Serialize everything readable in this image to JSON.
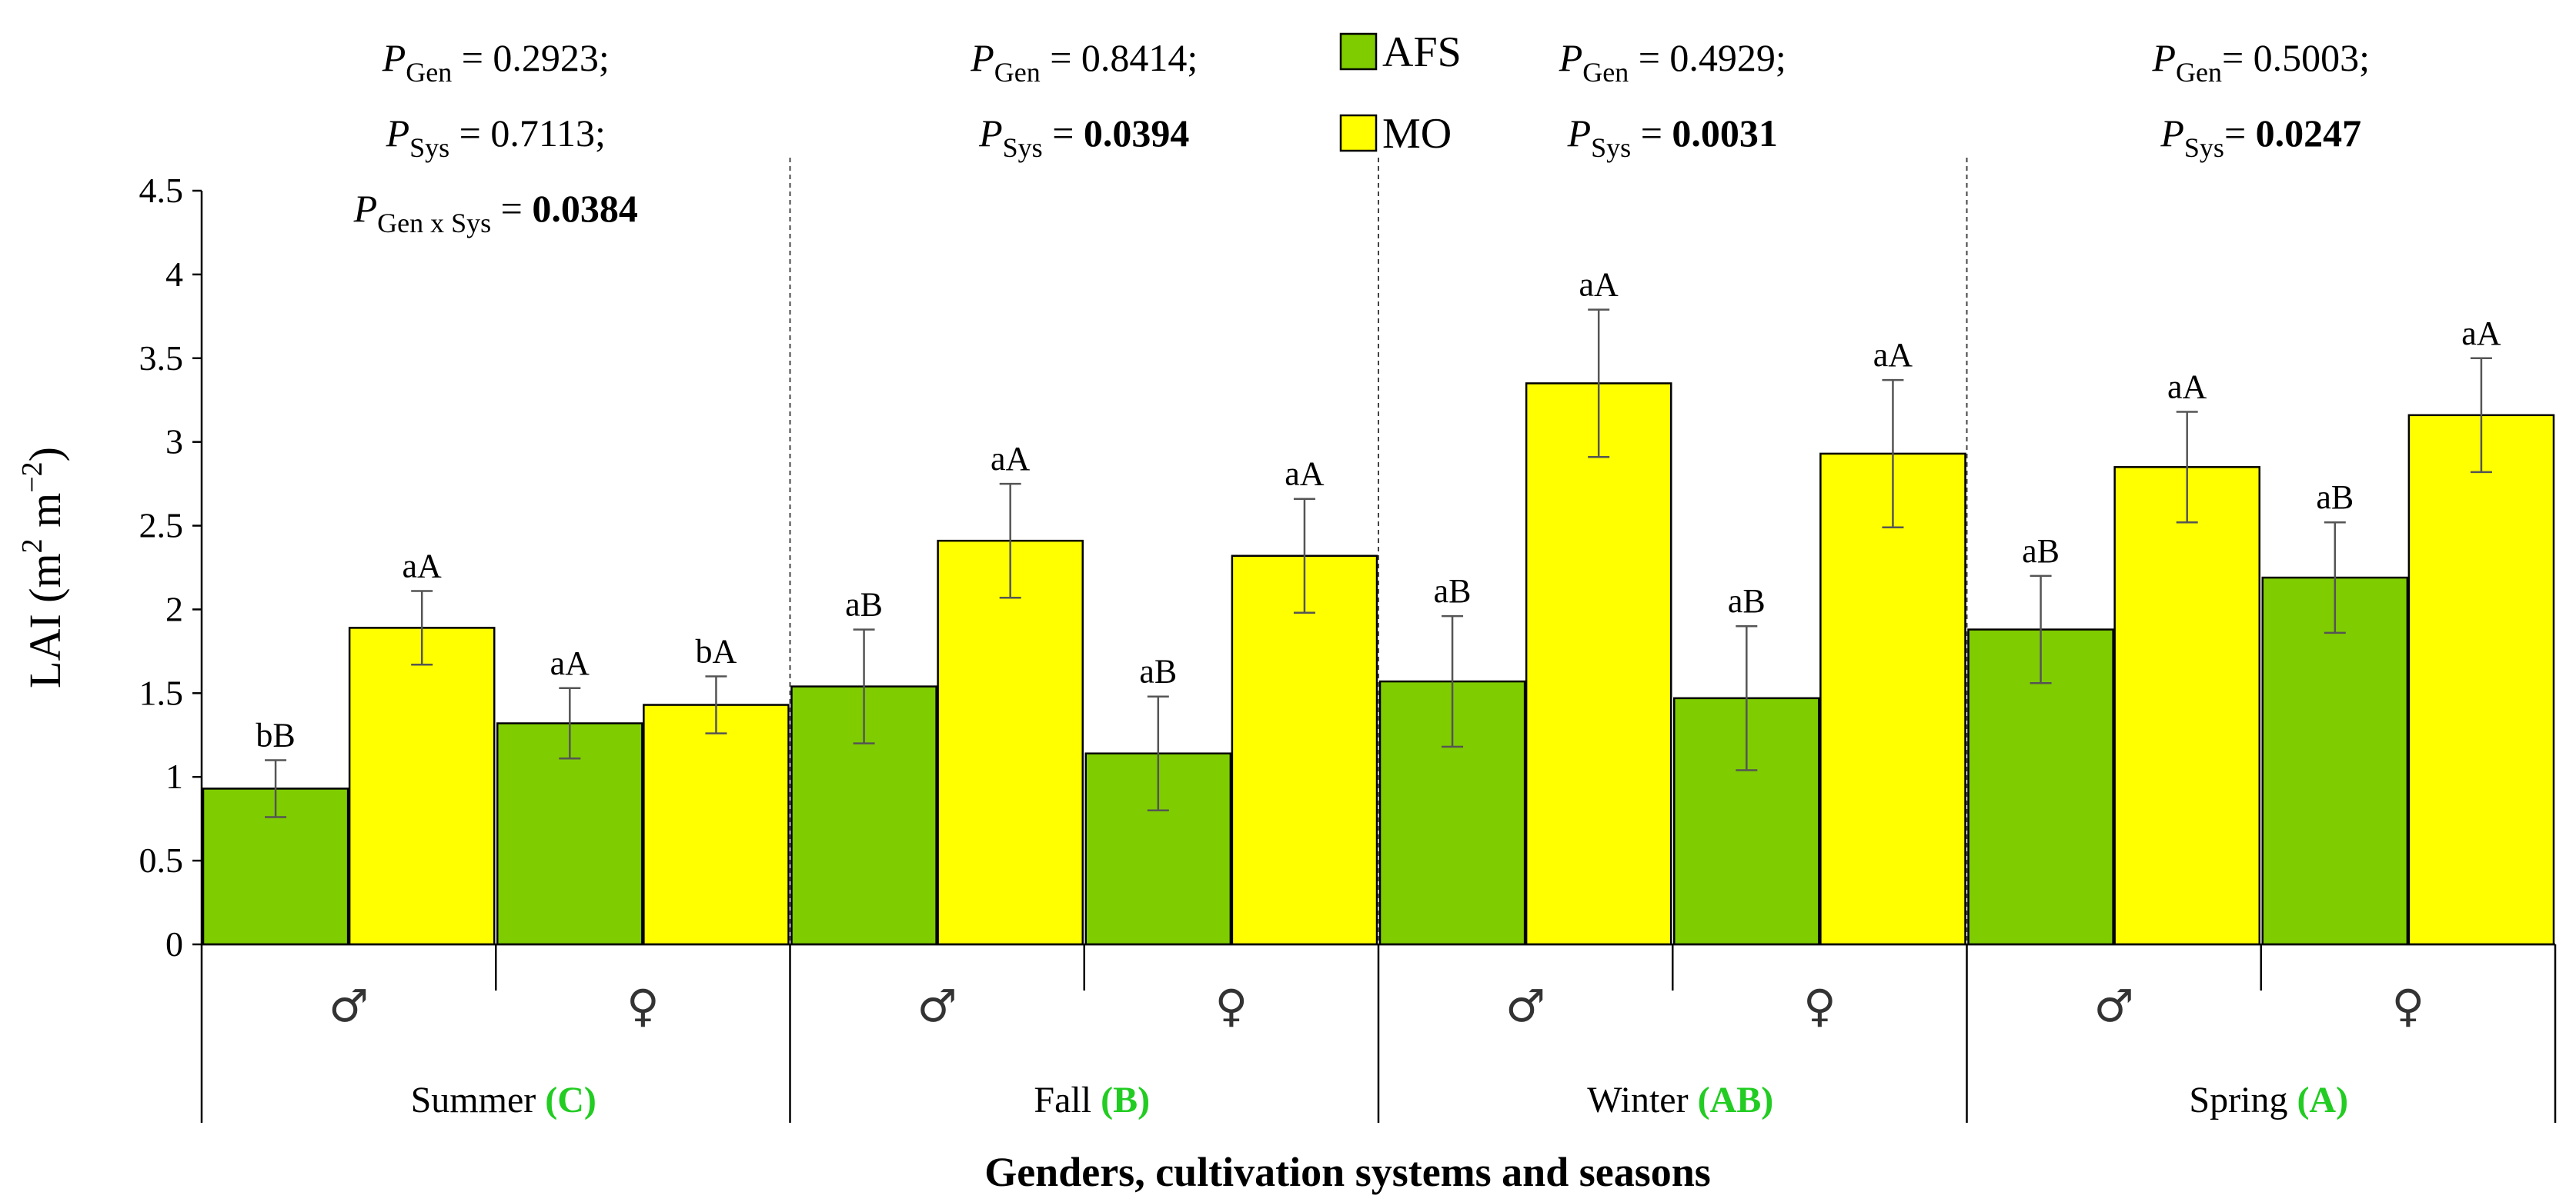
{
  "chart_data": {
    "type": "bar",
    "ylabel": "LAI (m² m⁻²)",
    "ylabel_parts": {
      "main": "LAI (m",
      "sup1": "2",
      "mid": " m",
      "sup2": "−2",
      "end": ")"
    },
    "xlabel": "Genders, cultivation systems and seasons",
    "ylim": [
      0,
      4.5
    ],
    "ytick_step": 0.5,
    "yticks": [
      "0",
      "0.5",
      "1",
      "1.5",
      "2",
      "2.5",
      "3",
      "3.5",
      "4",
      "4.5"
    ],
    "legend": [
      {
        "name": "AFS",
        "color": "#7fcc00"
      },
      {
        "name": "MO",
        "color": "#ffff00"
      }
    ],
    "seasons": [
      {
        "name": "Summer",
        "group_letter": "(C)",
        "stats": [
          {
            "sym": "P",
            "sub": "Gen",
            "text": " = 0.2923;",
            "bold": ""
          },
          {
            "sym": "P",
            "sub": "Sys",
            "text": " = 0.7113;",
            "bold": ""
          },
          {
            "sym": "P",
            "sub": "Gen x Sys",
            "text": " = ",
            "bold": "0.0384"
          }
        ],
        "genders": [
          {
            "symbol": "♂",
            "bars": [
              {
                "series": "AFS",
                "value": 0.93,
                "err": 0.17,
                "label": "bB"
              },
              {
                "series": "MO",
                "value": 1.89,
                "err": 0.22,
                "label": "aA"
              }
            ]
          },
          {
            "symbol": "♀",
            "bars": [
              {
                "series": "AFS",
                "value": 1.32,
                "err": 0.21,
                "label": "aA"
              },
              {
                "series": "MO",
                "value": 1.43,
                "err": 0.17,
                "label": "bA"
              }
            ]
          }
        ]
      },
      {
        "name": "Fall",
        "group_letter": "(B)",
        "stats": [
          {
            "sym": "P",
            "sub": "Gen",
            "text": " = 0.8414;",
            "bold": ""
          },
          {
            "sym": "P",
            "sub": "Sys",
            "text": " = ",
            "bold": "0.0394"
          }
        ],
        "genders": [
          {
            "symbol": "♂",
            "bars": [
              {
                "series": "AFS",
                "value": 1.54,
                "err": 0.34,
                "label": "aB"
              },
              {
                "series": "MO",
                "value": 2.41,
                "err": 0.34,
                "label": "aA"
              }
            ]
          },
          {
            "symbol": "♀",
            "bars": [
              {
                "series": "AFS",
                "value": 1.14,
                "err": 0.34,
                "label": "aB"
              },
              {
                "series": "MO",
                "value": 2.32,
                "err": 0.34,
                "label": "aA"
              }
            ]
          }
        ]
      },
      {
        "name": "Winter",
        "group_letter": "(AB)",
        "stats": [
          {
            "sym": "P",
            "sub": "Gen",
            "text": " = 0.4929;",
            "bold": ""
          },
          {
            "sym": "P",
            "sub": "Sys",
            "text": " = ",
            "bold": "0.0031"
          }
        ],
        "genders": [
          {
            "symbol": "♂",
            "bars": [
              {
                "series": "AFS",
                "value": 1.57,
                "err": 0.39,
                "label": "aB"
              },
              {
                "series": "MO",
                "value": 3.35,
                "err": 0.44,
                "label": "aA"
              }
            ]
          },
          {
            "symbol": "♀",
            "bars": [
              {
                "series": "AFS",
                "value": 1.47,
                "err": 0.43,
                "label": "aB"
              },
              {
                "series": "MO",
                "value": 2.93,
                "err": 0.44,
                "label": "aA"
              }
            ]
          }
        ]
      },
      {
        "name": "Spring",
        "group_letter": "(A)",
        "stats": [
          {
            "sym": "P",
            "sub": "Gen",
            "text": "= 0.5003;",
            "bold": ""
          },
          {
            "sym": "P",
            "sub": "Sys",
            "text": "= ",
            "bold": "0.0247"
          }
        ],
        "genders": [
          {
            "symbol": "♂",
            "bars": [
              {
                "series": "AFS",
                "value": 1.88,
                "err": 0.32,
                "label": "aB"
              },
              {
                "series": "MO",
                "value": 2.85,
                "err": 0.33,
                "label": "aA"
              }
            ]
          },
          {
            "symbol": "♀",
            "bars": [
              {
                "series": "AFS",
                "value": 2.19,
                "err": 0.33,
                "label": "aB"
              },
              {
                "series": "MO",
                "value": 3.16,
                "err": 0.34,
                "label": "aA"
              }
            ]
          }
        ]
      }
    ],
    "colors": {
      "group_letter": "#22cc22",
      "axis": "#000000",
      "divider": "#444444"
    }
  }
}
